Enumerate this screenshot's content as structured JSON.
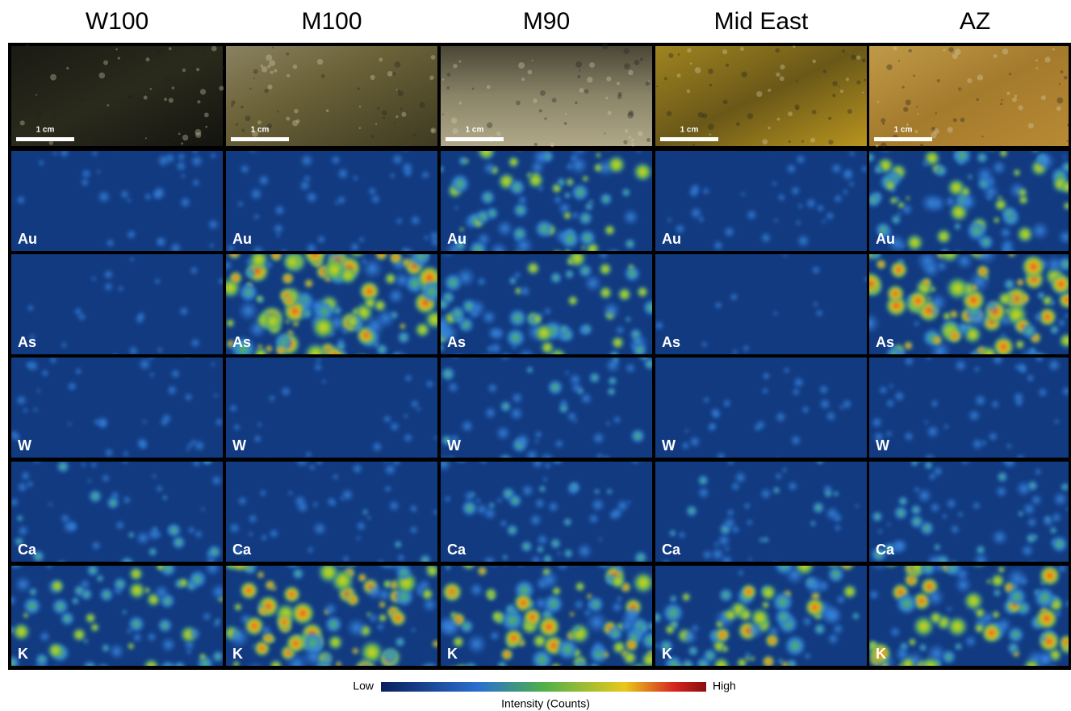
{
  "columns": [
    "W100",
    "M100",
    "M90",
    "Mid East",
    "AZ"
  ],
  "scale_bar_label": "1 cm",
  "elements": [
    "Au",
    "As",
    "W",
    "Ca",
    "K"
  ],
  "colorbar": {
    "low": "Low",
    "high": "High",
    "title": "Intensity (Counts)"
  }
}
